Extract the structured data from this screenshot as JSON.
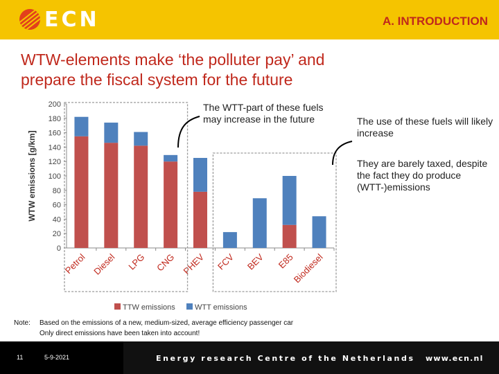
{
  "header": {
    "logo_text": "ECN",
    "section_label": "A. INTRODUCTION",
    "colors": {
      "bar": "#f5c400",
      "accent": "#c0281c",
      "logo_mark": "#e2401c"
    }
  },
  "slide": {
    "title_line1": "WTW-elements make ‘the polluter pay’ and",
    "title_line2": "prepare the fiscal system for the future",
    "callout1": "The WTT-part of these fuels may increase in the future",
    "callout2": "The use of these fuels will likely increase",
    "callout3": "They are barely taxed, despite the fact they do produce (WTT-)emissions"
  },
  "chart_data": {
    "type": "bar",
    "stacked": true,
    "categories": [
      "Petrol",
      "Diesel",
      "LPG",
      "CNG",
      "PHEV",
      "FCV",
      "BEV",
      "E85",
      "Biodiesel"
    ],
    "series": [
      {
        "name": "TTW emissions",
        "color": "#c0504d",
        "values": [
          155,
          146,
          142,
          120,
          78,
          0,
          0,
          32,
          0
        ]
      },
      {
        "name": "WTT emissions",
        "color": "#4f81bd",
        "values": [
          27,
          28,
          19,
          9,
          47,
          22,
          69,
          68,
          44
        ]
      }
    ],
    "ylabel": "WTW emissions [g/km]",
    "ylim": [
      0,
      200
    ],
    "yticks": [
      "0",
      "20",
      "40",
      "60",
      "80",
      "100",
      "120",
      "140",
      "160",
      "180",
      "200"
    ],
    "grid": false,
    "legend_position": "bottom"
  },
  "note": {
    "label": "Note:",
    "line1": "Based on the emissions of a new, medium-sized, average efficiency passenger car",
    "line2": "Only direct emissions have been taken into account!"
  },
  "footer": {
    "page_number": "11",
    "date": "5-9-2021",
    "organization": "Energy research Centre of the Netherlands",
    "url": "www.ecn.nl"
  }
}
